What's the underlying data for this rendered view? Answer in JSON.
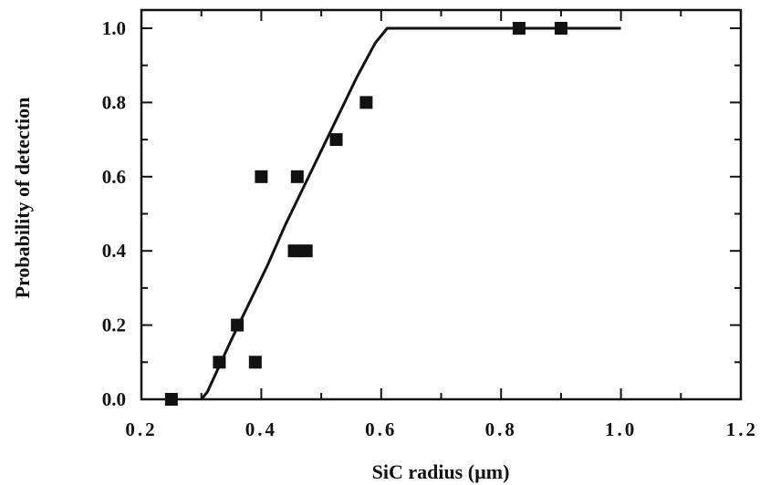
{
  "chart_data": {
    "type": "scatter",
    "title": "",
    "xlabel": "SiC radius (µm)",
    "ylabel": "Probability of detection",
    "xlim": [
      0.2,
      1.2
    ],
    "ylim": [
      0.0,
      1.0
    ],
    "x_ticks": [
      0.2,
      0.4,
      0.6,
      0.8,
      1.0,
      1.2
    ],
    "x_tick_labels": [
      "0.2",
      "0.4",
      "0.6",
      "0.8",
      "1.0",
      "1.2"
    ],
    "y_ticks": [
      0.0,
      0.2,
      0.4,
      0.6,
      0.8,
      1.0
    ],
    "y_tick_labels": [
      "0.0",
      "0.2",
      "0.4",
      "0.6",
      "0.8",
      "1.0"
    ],
    "grid": false,
    "legend": "none",
    "series": [
      {
        "type": "scatter",
        "marker": "filled-square",
        "color": "#111111",
        "x": [
          0.25,
          0.33,
          0.36,
          0.39,
          0.4,
          0.455,
          0.46,
          0.475,
          0.525,
          0.575,
          0.83,
          0.9
        ],
        "y": [
          0.0,
          0.1,
          0.2,
          0.1,
          0.6,
          0.4,
          0.6,
          0.4,
          0.7,
          0.8,
          1.0,
          1.0
        ]
      },
      {
        "type": "line",
        "color": "#111111",
        "x": [
          0.3,
          0.31,
          0.33,
          0.35,
          0.38,
          0.41,
          0.44,
          0.47,
          0.5,
          0.53,
          0.56,
          0.59,
          0.61,
          0.7,
          0.8,
          0.9,
          1.0
        ],
        "y": [
          0.0,
          0.02,
          0.09,
          0.16,
          0.26,
          0.36,
          0.47,
          0.57,
          0.67,
          0.77,
          0.87,
          0.96,
          1.0,
          1.0,
          1.0,
          1.0,
          1.0
        ]
      }
    ]
  }
}
